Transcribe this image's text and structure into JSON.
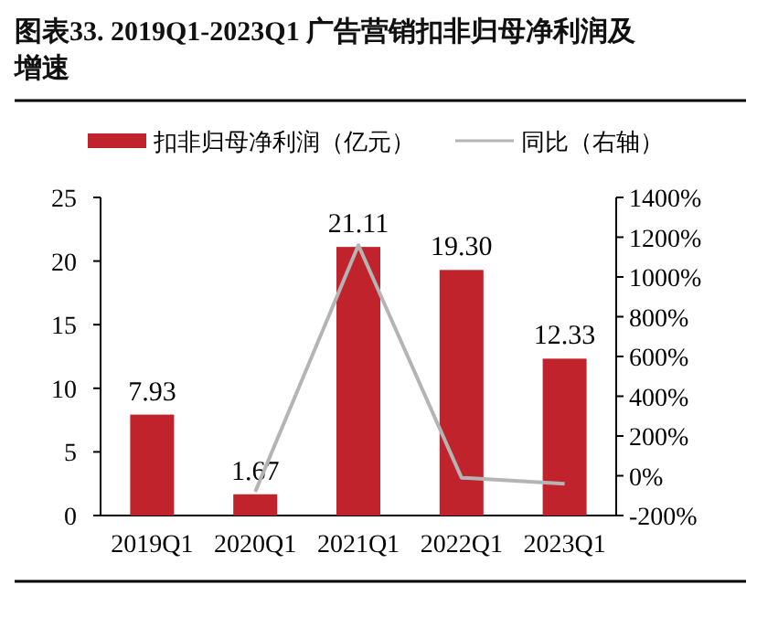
{
  "chart_data": {
    "type": "bar",
    "title": "图表33.  2019Q1-2023Q1  广告营销扣非归母净利润及增速",
    "categories": [
      "2019Q1",
      "2020Q1",
      "2021Q1",
      "2022Q1",
      "2023Q1"
    ],
    "series": [
      {
        "name": "扣非归母净利润（亿元）",
        "color": "#c0232c",
        "values": [
          7.93,
          1.67,
          21.11,
          19.3,
          12.33
        ],
        "value_labels": [
          "7.93",
          "1.67",
          "21.11",
          "19.30",
          "12.33"
        ]
      },
      {
        "name": "同比（右轴）",
        "type": "line",
        "axis": "y2",
        "color": "#b4b4b4",
        "values": [
          null,
          -80,
          1160,
          -10,
          -40
        ]
      }
    ],
    "ylim": [
      0,
      25
    ],
    "yticks": [
      0,
      5,
      10,
      15,
      20,
      25
    ],
    "y2lim": [
      -200,
      1400
    ],
    "y2ticks": [
      {
        "value": -200,
        "label": "-200%"
      },
      {
        "value": 0,
        "label": "0%"
      },
      {
        "value": 200,
        "label": "200%"
      },
      {
        "value": 400,
        "label": "400%"
      },
      {
        "value": 600,
        "label": "600%"
      },
      {
        "value": 800,
        "label": "800%"
      },
      {
        "value": 1000,
        "label": "1000%"
      },
      {
        "value": 1200,
        "label": "1200%"
      },
      {
        "value": 1400,
        "label": "1400%"
      }
    ],
    "legend": "top",
    "grid": false,
    "marker": "none"
  }
}
